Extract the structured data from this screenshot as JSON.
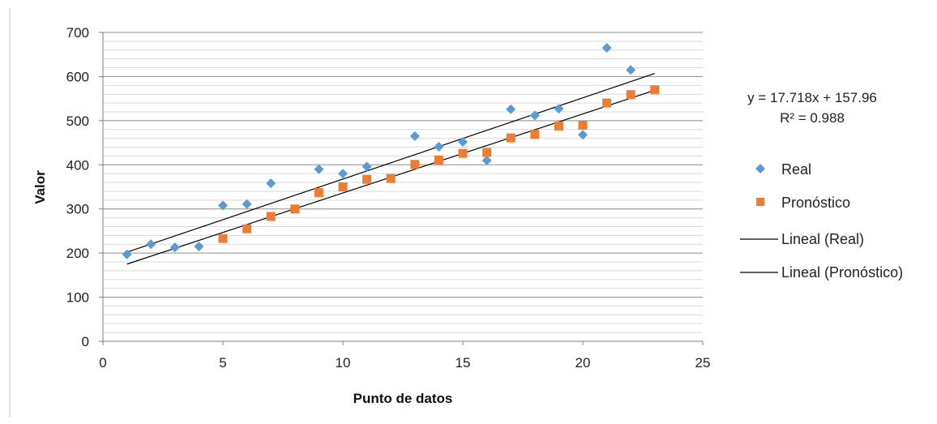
{
  "chart_data": {
    "type": "scatter",
    "xlabel": "Punto de datos",
    "ylabel": "Valor",
    "xlim": [
      0,
      25
    ],
    "ylim": [
      0,
      700
    ],
    "x_ticks": [
      0,
      5,
      10,
      15,
      20,
      25
    ],
    "y_ticks": [
      0,
      100,
      200,
      300,
      400,
      500,
      600,
      700
    ],
    "y_minor_step": 20,
    "grid": true,
    "legend_position": "right",
    "series": [
      {
        "name": "Real",
        "marker": "diamond",
        "color": "#5B9BD5",
        "x": [
          1,
          2,
          3,
          4,
          5,
          6,
          7,
          9,
          10,
          11,
          13,
          14,
          15,
          16,
          17,
          18,
          19,
          20,
          21,
          22
        ],
        "y": [
          197,
          220,
          213,
          215,
          308,
          311,
          358,
          390,
          380,
          396,
          465,
          441,
          452,
          410,
          526,
          512,
          527,
          468,
          665,
          615
        ]
      },
      {
        "name": "Pronóstico",
        "marker": "square",
        "color": "#ED7D31",
        "x": [
          5,
          6,
          7,
          8,
          9,
          10,
          11,
          12,
          13,
          14,
          15,
          16,
          17,
          18,
          19,
          20,
          21,
          22,
          23
        ],
        "y": [
          233,
          255,
          283,
          300,
          337,
          350,
          367,
          369,
          401,
          411,
          426,
          428,
          461,
          469,
          488,
          490,
          540,
          559,
          570
        ]
      }
    ],
    "trendlines": [
      {
        "name": "Lineal (Real)",
        "color": "#000000",
        "x": [
          1,
          23
        ],
        "y": [
          202,
          607
        ]
      },
      {
        "name": "Lineal (Pronóstico)",
        "color": "#000000",
        "x": [
          1,
          23
        ],
        "y": [
          175,
          569
        ]
      }
    ],
    "annotation": {
      "equation": "y = 17.718x + 157.96",
      "r_squared": "R² = 0.988"
    }
  }
}
